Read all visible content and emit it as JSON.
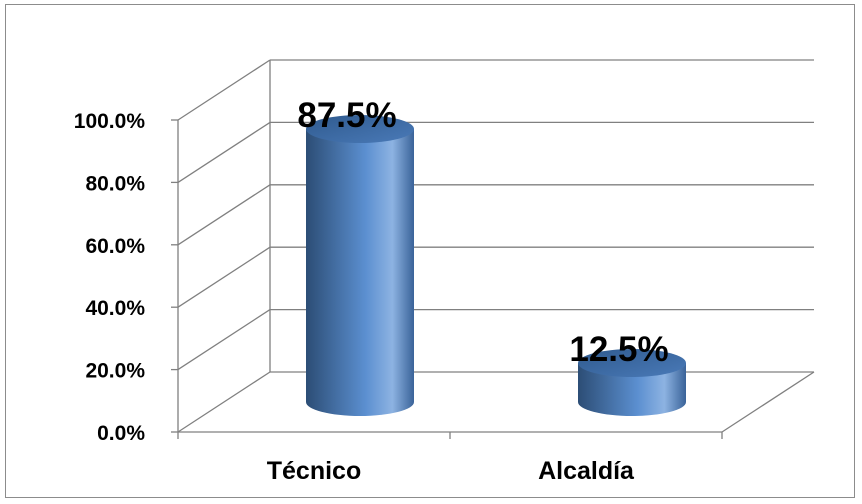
{
  "chart_data": {
    "type": "bar",
    "style": "3d-cylinder",
    "categories": [
      "Técnico",
      "Alcaldía"
    ],
    "values": [
      87.5,
      12.5
    ],
    "data_labels": [
      "87.5%",
      "12.5%"
    ],
    "y_ticks": [
      "0.0%",
      "20.0%",
      "40.0%",
      "60.0%",
      "80.0%",
      "100.0%"
    ],
    "ylim": [
      0,
      100
    ],
    "grid": true,
    "legend": "none",
    "colors": {
      "bar": "#4f81bd",
      "bar_dark": "#2c4d75",
      "bar_light": "#8db3e2",
      "grid": "#808080"
    }
  }
}
